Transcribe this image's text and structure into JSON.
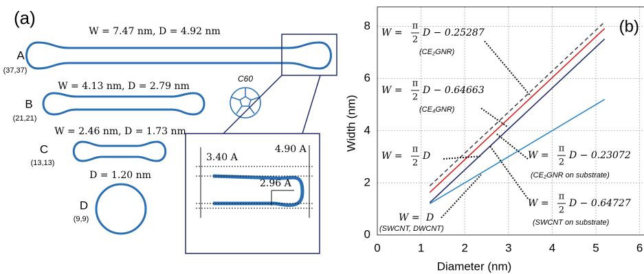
{
  "panel_a": {
    "label": "(a)",
    "tubes": [
      {
        "title": "W = 7.47 nm, D = 4.92 nm",
        "letter": "A",
        "chirality": "(37,37)"
      },
      {
        "title": "W = 4.13 nm, D = 2.79 nm",
        "letter": "B",
        "chirality": "(21,21)"
      },
      {
        "title": "W = 2.46 nm, D = 1.73 nm",
        "letter": "C",
        "chirality": "(13,13)"
      },
      {
        "title": "D = 1.20 nm",
        "letter": "D",
        "chirality": "(9,9)"
      }
    ],
    "fullerene": "C60",
    "inset": {
      "gap": "3.40 A",
      "bulb": "4.90 A",
      "radius": "2.96 A"
    }
  },
  "chart_data": {
    "type": "line",
    "label": "(b)",
    "x_label": "Diameter (nm)",
    "y_label": "Width (nm)",
    "xlim": [
      0,
      6.1
    ],
    "xticks": [
      0,
      1,
      2,
      3,
      4,
      5,
      6
    ],
    "ylim": [
      0,
      8.75
    ],
    "yticks": [
      0,
      2,
      4,
      6,
      8
    ],
    "grid": true,
    "x": [
      1.2,
      5.2
    ],
    "series": [
      {
        "color": "#444444",
        "dash": true,
        "values": [
          1.88,
          8.17
        ]
      },
      {
        "color": "#d62020",
        "values": [
          1.63,
          7.92
        ]
      },
      {
        "color": "#1f2a6b",
        "values": [
          1.24,
          7.52
        ]
      },
      {
        "color": "#2a86c8",
        "values": [
          1.2,
          5.2
        ]
      }
    ],
    "annotations": [
      {
        "lhs": "W =",
        "num": "π",
        "den": "2",
        "rhs": "D − 0.25287",
        "note": "(CE₂GNR)"
      },
      {
        "lhs": "W =",
        "num": "π",
        "den": "2",
        "rhs": "D − 0.64663",
        "note": "(CE₄GNR)"
      },
      {
        "lhs": "W =",
        "num": "π",
        "den": "2",
        "rhs": "D"
      },
      {
        "lhs": "W =",
        "num": "π",
        "den": "2",
        "rhs": "D − 0.23072",
        "note": "(CE₂GNR on substrate)"
      },
      {
        "lhs": "W =",
        "num": "π",
        "den": "2",
        "rhs": "D − 0.64727",
        "note": "(SWCNT on substrate)"
      },
      {
        "lhs": "W =",
        "rhs": "D",
        "note": "(SWCNT, DWCNT)"
      }
    ]
  }
}
